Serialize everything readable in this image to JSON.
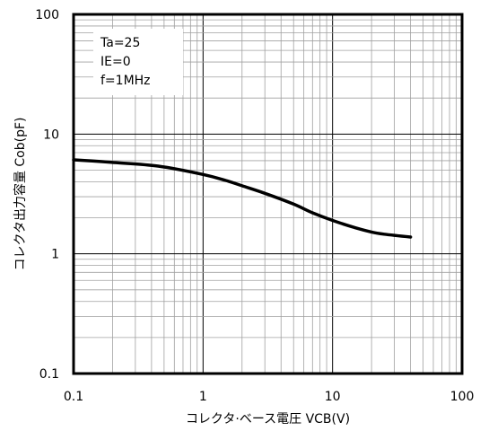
{
  "chart_data": {
    "type": "line",
    "xlabel": "コレクタ·ベース電圧 VCB(V)",
    "ylabel": "コレクタ出力容量 Cob(pF)",
    "x_scale": "log",
    "y_scale": "log",
    "xlim": [
      0.1,
      100
    ],
    "ylim": [
      0.1,
      100
    ],
    "x_ticks": [
      "0.1",
      "1",
      "10",
      "100"
    ],
    "y_ticks": [
      "0.1",
      "1",
      "10",
      "100"
    ],
    "grid": true,
    "legend_position": "top-left",
    "annotations": [
      "Ta=25",
      "IE=0",
      "f=1MHz"
    ],
    "series": [
      {
        "color": "#000000",
        "x": [
          0.1,
          0.2,
          0.45,
          1.0,
          1.5,
          2.0,
          3.0,
          5.0,
          7.0,
          10,
          15,
          20,
          25,
          40
        ],
        "y": [
          6.1,
          5.8,
          5.4,
          4.6,
          4.1,
          3.7,
          3.2,
          2.6,
          2.2,
          1.9,
          1.65,
          1.52,
          1.46,
          1.38
        ]
      }
    ]
  }
}
